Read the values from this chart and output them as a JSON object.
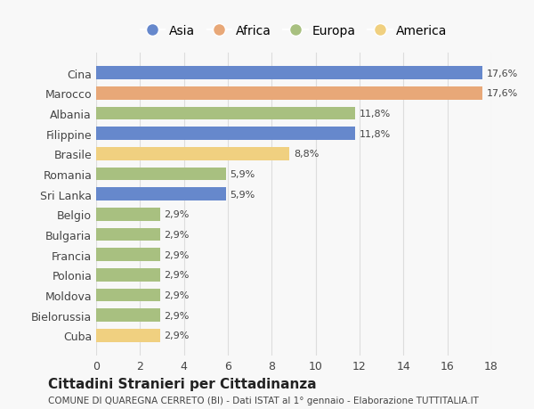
{
  "categories": [
    "Cuba",
    "Bielorussia",
    "Moldova",
    "Polonia",
    "Francia",
    "Bulgaria",
    "Belgio",
    "Sri Lanka",
    "Romania",
    "Brasile",
    "Filippine",
    "Albania",
    "Marocco",
    "Cina"
  ],
  "values": [
    2.9,
    2.9,
    2.9,
    2.9,
    2.9,
    2.9,
    2.9,
    5.9,
    5.9,
    8.8,
    11.8,
    11.8,
    17.6,
    17.6
  ],
  "colors": [
    "#f0d080",
    "#a8c080",
    "#a8c080",
    "#a8c080",
    "#a8c080",
    "#a8c080",
    "#a8c080",
    "#6688cc",
    "#a8c080",
    "#f0d080",
    "#6688cc",
    "#a8c080",
    "#e8a878",
    "#6688cc"
  ],
  "labels": [
    "2,9%",
    "2,9%",
    "2,9%",
    "2,9%",
    "2,9%",
    "2,9%",
    "2,9%",
    "5,9%",
    "5,9%",
    "8,8%",
    "11,8%",
    "11,8%",
    "17,6%",
    "17,6%"
  ],
  "legend": [
    {
      "label": "Asia",
      "color": "#6688cc"
    },
    {
      "label": "Africa",
      "color": "#e8a878"
    },
    {
      "label": "Europa",
      "color": "#a8c080"
    },
    {
      "label": "America",
      "color": "#f0d080"
    }
  ],
  "xlim": [
    0,
    18
  ],
  "xticks": [
    0,
    2,
    4,
    6,
    8,
    10,
    12,
    14,
    16,
    18
  ],
  "title": "Cittadini Stranieri per Cittadinanza",
  "subtitle": "COMUNE DI QUAREGNA CERRETO (BI) - Dati ISTAT al 1° gennaio - Elaborazione TUTTITALIA.IT",
  "bg_color": "#f8f8f8",
  "bar_height": 0.65,
  "grid_color": "#dddddd"
}
